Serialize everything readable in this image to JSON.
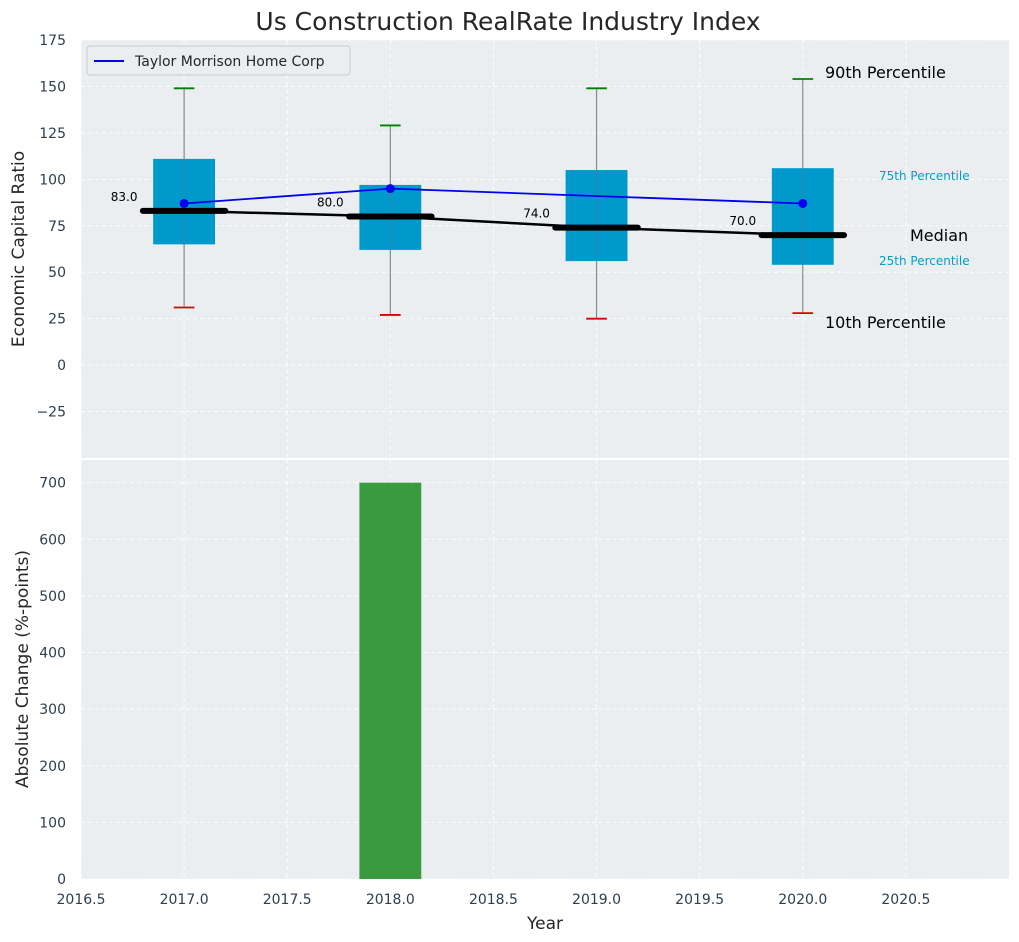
{
  "chart_data": [
    {
      "type": "box",
      "title": "Us Construction RealRate Industry Index",
      "xlabel": "",
      "ylabel": "Economic Capital Ratio",
      "ylim": [
        -50,
        175
      ],
      "yticks": [
        -25,
        0,
        25,
        50,
        75,
        100,
        125,
        150,
        175
      ],
      "grid": true,
      "legend": {
        "placement": "top-left",
        "entries": [
          "Taylor Morrison Home Corp"
        ]
      },
      "years": [
        2017,
        2018,
        2019,
        2020
      ],
      "p10": [
        31,
        27,
        25,
        28
      ],
      "p25": [
        65,
        62,
        56,
        54
      ],
      "median": [
        83,
        80,
        74,
        70
      ],
      "p75": [
        111,
        97,
        105,
        106
      ],
      "p90": [
        149,
        129,
        149,
        154
      ],
      "median_labels": [
        "83.0",
        "80.0",
        "74.0",
        "70.0"
      ],
      "series": [
        {
          "name": "Taylor Morrison Home Corp",
          "x": [
            2017,
            2018,
            2020
          ],
          "values": [
            87,
            95,
            87
          ]
        }
      ],
      "annotations": {
        "p90": "90th Percentile",
        "p75": "75th Percentile",
        "median": "Median",
        "p25": "25th Percentile",
        "p10": "10th Percentile"
      },
      "colors": {
        "box": "#0099cc",
        "company_line": "#0000ee",
        "median_line": "#000000",
        "p90_cap": "#008000",
        "p10_cap": "#dd0000",
        "background": "#eaeef0"
      }
    },
    {
      "type": "bar",
      "xlabel": "Year",
      "ylabel": "Absolute Change (%-points)",
      "ylim": [
        0,
        740
      ],
      "yticks": [
        0,
        100,
        200,
        300,
        400,
        500,
        600,
        700
      ],
      "xlim": [
        2016.5,
        2021.0
      ],
      "xticks": [
        "2016.5",
        "2017.0",
        "2017.5",
        "2018.0",
        "2018.5",
        "2019.0",
        "2019.5",
        "2020.0",
        "2020.5"
      ],
      "x": [
        2018
      ],
      "values": [
        700
      ],
      "grid": true,
      "colors": {
        "bar": "#3a9b3e",
        "background": "#eaeef0"
      }
    }
  ]
}
